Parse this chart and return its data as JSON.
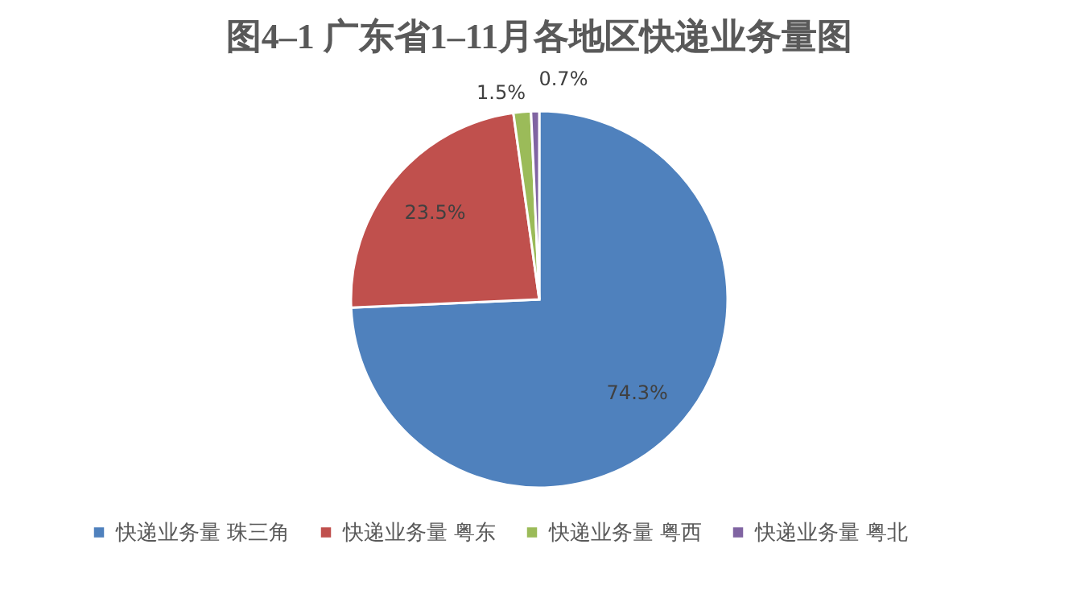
{
  "chart_data": {
    "type": "pie",
    "title": "图4–1 广东省1–11月各地区快递业务量图",
    "categories": [
      "快递业务量 珠三角",
      "快递业务量 粤东",
      "快递业务量 粤西",
      "快递业务量 粤北"
    ],
    "values": [
      74.3,
      23.5,
      1.5,
      0.7
    ],
    "value_labels": [
      "74.3%",
      "23.5%",
      "1.5%",
      "0.7%"
    ],
    "colors": [
      "#4f81bd",
      "#c0504d",
      "#9bbb59",
      "#8064a2"
    ],
    "legend": "bottom"
  }
}
